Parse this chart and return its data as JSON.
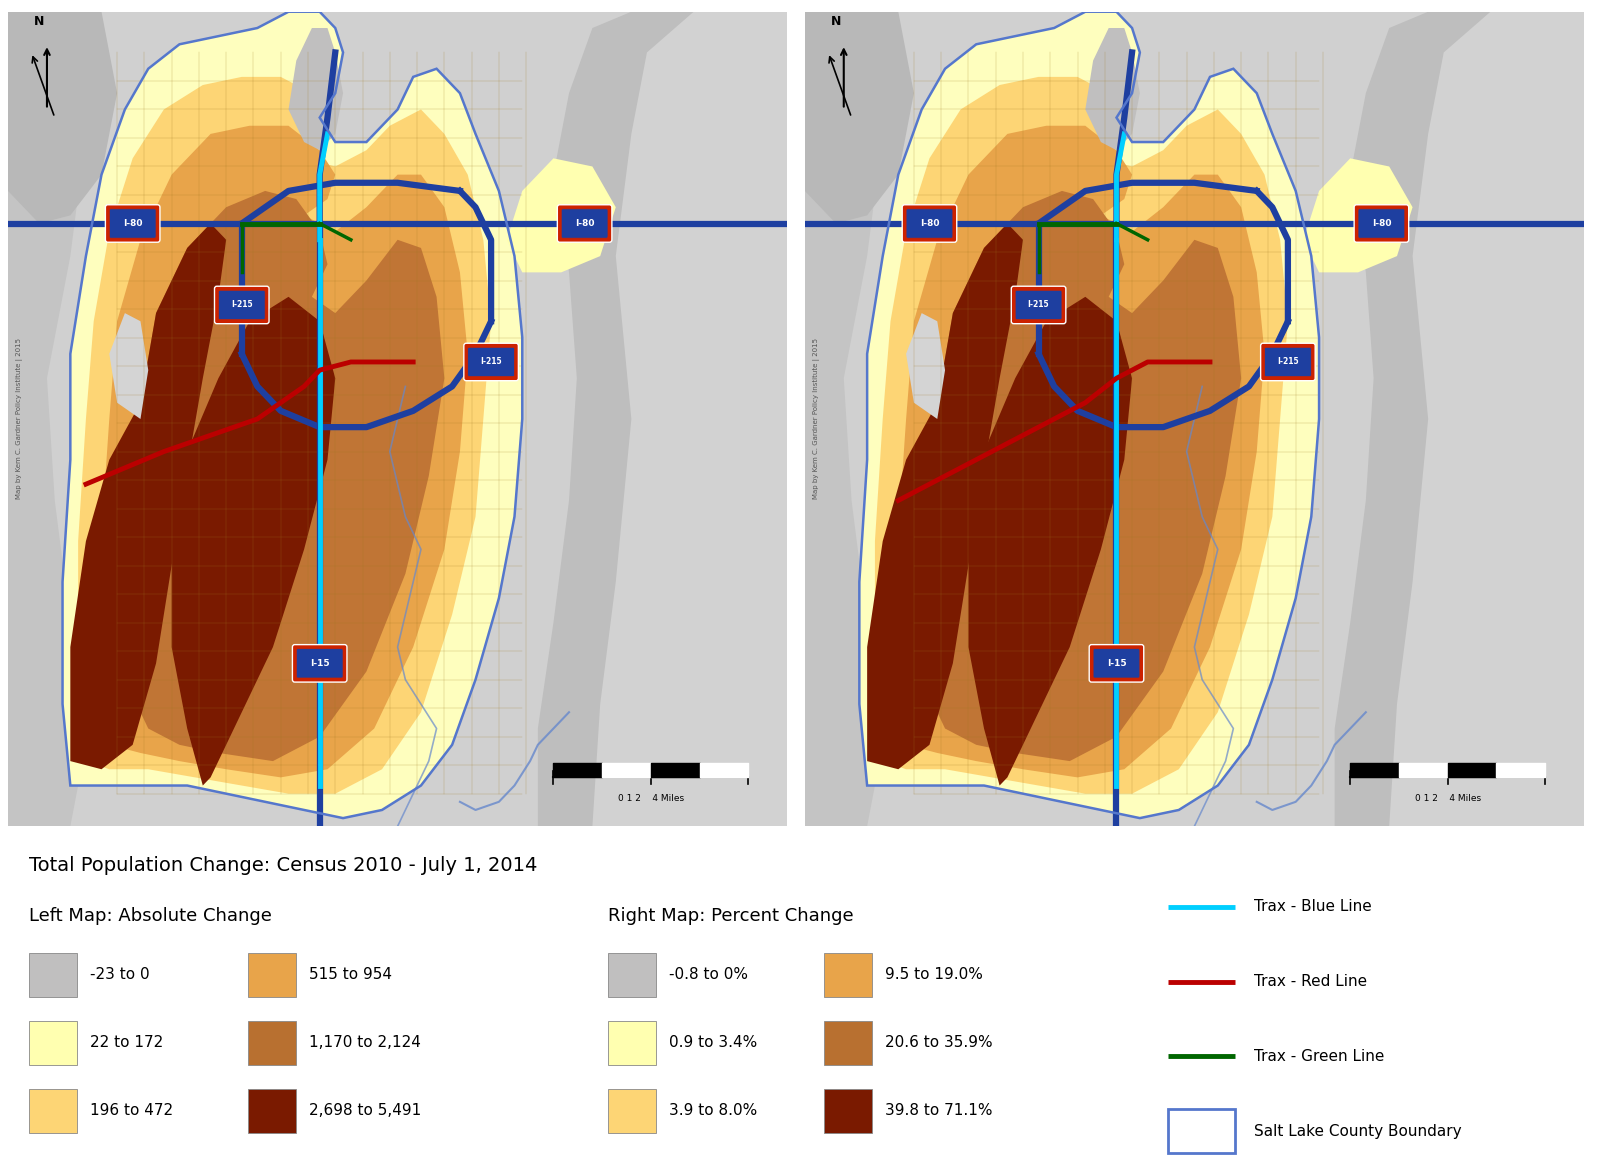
{
  "subtitle": "Total Population Change: Census 2010 - July 1, 2014",
  "left_map_title": "Left Map: Absolute Change",
  "right_map_title": "Right Map: Percent Change",
  "left_legend": [
    {
      "label": "-23 to 0",
      "color": "#c0bfbf"
    },
    {
      "label": "22 to 172",
      "color": "#ffffb0"
    },
    {
      "label": "196 to 472",
      "color": "#fdd575"
    },
    {
      "label": "515 to 954",
      "color": "#e8a44a"
    },
    {
      "label": "1,170 to 2,124",
      "color": "#b87030"
    },
    {
      "label": "2,698 to 5,491",
      "color": "#7a1a00"
    }
  ],
  "right_legend": [
    {
      "label": "-0.8 to 0%",
      "color": "#c0bfbf"
    },
    {
      "label": "0.9 to 3.4%",
      "color": "#ffffb0"
    },
    {
      "label": "3.9 to 8.0%",
      "color": "#fdd575"
    },
    {
      "label": "9.5 to 19.0%",
      "color": "#e8a44a"
    },
    {
      "label": "20.6 to 35.9%",
      "color": "#b87030"
    },
    {
      "label": "39.8 to 71.1%",
      "color": "#7a1a00"
    }
  ],
  "line_legend": [
    {
      "label": "Trax - Blue Line",
      "color": "#00cfff",
      "lw": 3.5
    },
    {
      "label": "Trax - Red Line",
      "color": "#bb0000",
      "lw": 3.5
    },
    {
      "label": "Trax - Green Line",
      "color": "#006600",
      "lw": 3.5
    },
    {
      "label": "Salt Lake County Boundary",
      "color": "#5577cc",
      "lw": 2.0
    }
  ],
  "bg_color": "#ffffff",
  "terrain_gray": "#c8c8c8",
  "mountain_color": "#b0b0b0",
  "font_size_subtitle": 14,
  "font_size_legend_header": 13,
  "font_size_legend": 11,
  "font_size_legend_line": 11
}
